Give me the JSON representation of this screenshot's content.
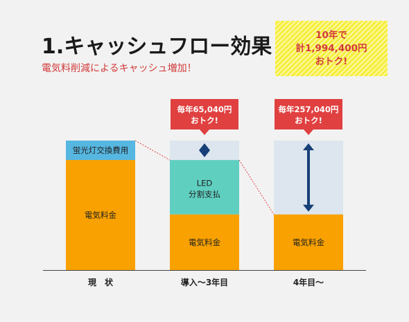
{
  "title": "1.キャッシュフロー効果",
  "subtitle": "電気料削減によるキャッシュ増加！",
  "promo": {
    "line1": "10年で",
    "line2": "計1,994,400円",
    "line3": "おトク!"
  },
  "colors": {
    "orange": "#f9a100",
    "lamp_blue": "#56b7e1",
    "teal": "#5fcfc0",
    "savings_bg": "#dde6ee",
    "callout_red": "#e04040",
    "arrow_navy": "#173f78",
    "promo_red": "#d23a3a"
  },
  "chart_data": {
    "type": "bar",
    "title": "1.キャッシュフロー効果",
    "subtitle": "電気料削減によるキャッシュ増加！",
    "categories": [
      "現　状",
      "導入〜3年目",
      "4年目〜"
    ],
    "total": 100,
    "bars": [
      {
        "category": "現　状",
        "segments": [
          {
            "label": "電気料金",
            "value": 85,
            "color": "#f9a100"
          },
          {
            "label": "蛍光灯交換費用",
            "value": 15,
            "color": "#56b7e1"
          }
        ],
        "savings": 0
      },
      {
        "category": "導入〜3年目",
        "segments": [
          {
            "label": "電気料金",
            "value": 43,
            "color": "#f9a100"
          },
          {
            "label": "LED\n分割支払",
            "value": 42,
            "color": "#5fcfc0"
          }
        ],
        "savings": 15,
        "callout": {
          "line1": "毎年65,040円",
          "line2": "おトク!"
        }
      },
      {
        "category": "4年目〜",
        "segments": [
          {
            "label": "電気料金",
            "value": 43,
            "color": "#f9a100"
          }
        ],
        "savings": 57,
        "callout": {
          "line1": "毎年257,040円",
          "line2": "おトク!"
        }
      }
    ]
  }
}
